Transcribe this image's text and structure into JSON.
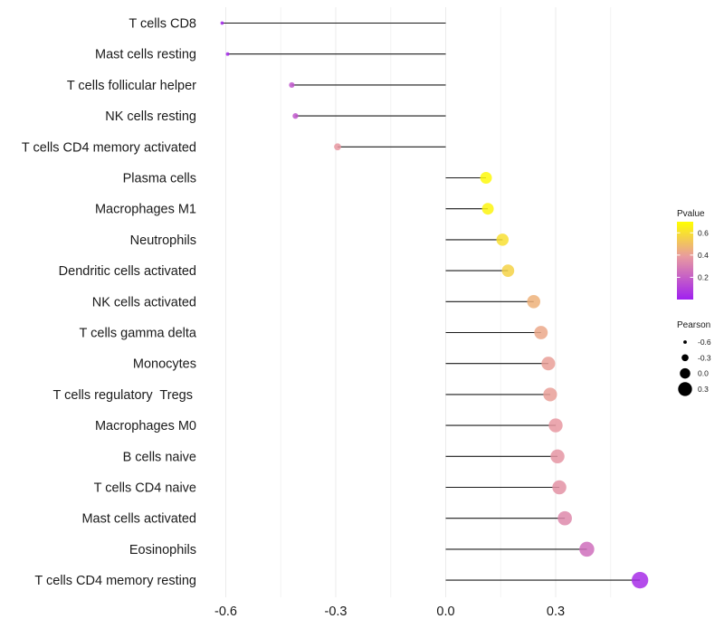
{
  "chart_data": {
    "type": "lollipop",
    "title": "",
    "xlabel": "",
    "ylabel": "",
    "xlim": [
      -0.72,
      0.58
    ],
    "x_ticks": [
      -0.6,
      -0.3,
      0.0,
      0.3
    ],
    "x_tick_labels": [
      "-0.6",
      "-0.3",
      "0.0",
      "0.3"
    ],
    "baseline": 0.0,
    "categories": [
      "T cells CD8",
      "Mast cells resting",
      "T cells follicular helper",
      "NK cells resting",
      "T cells CD4 memory activated",
      "Plasma cells",
      "Macrophages M1",
      "Neutrophils",
      "Dendritic cells activated",
      "NK cells activated",
      "T cells gamma delta",
      "Monocytes",
      "T cells regulatory  Tregs ",
      "Macrophages M0",
      "B cells naive",
      "T cells CD4 naive",
      "Mast cells activated",
      "Eosinophils",
      "T cells CD4 memory resting"
    ],
    "pearson": [
      -0.61,
      -0.595,
      -0.42,
      -0.41,
      -0.295,
      0.11,
      0.115,
      0.155,
      0.17,
      0.24,
      0.26,
      0.28,
      0.285,
      0.3,
      0.305,
      0.31,
      0.325,
      0.385,
      0.53
    ],
    "pvalue": [
      0.02,
      0.03,
      0.17,
      0.17,
      0.38,
      0.68,
      0.67,
      0.6,
      0.56,
      0.46,
      0.43,
      0.4,
      0.4,
      0.38,
      0.37,
      0.36,
      0.33,
      0.25,
      0.04
    ],
    "legend": {
      "color": {
        "title": "Pvalue",
        "ticks": [
          0.6,
          0.4,
          0.2
        ],
        "tick_labels": [
          "0.6",
          "0.4",
          "0.2"
        ],
        "range": [
          0.0,
          0.7
        ],
        "low_color": "#a020f0",
        "mid_color": "#e89aa0",
        "high_color": "#ffff00"
      },
      "size": {
        "title": "Pearson",
        "values": [
          -0.6,
          -0.3,
          0.0,
          0.3
        ],
        "labels": [
          "-0.6",
          "-0.3",
          "0.0",
          "0.3"
        ]
      },
      "position": "right"
    }
  }
}
